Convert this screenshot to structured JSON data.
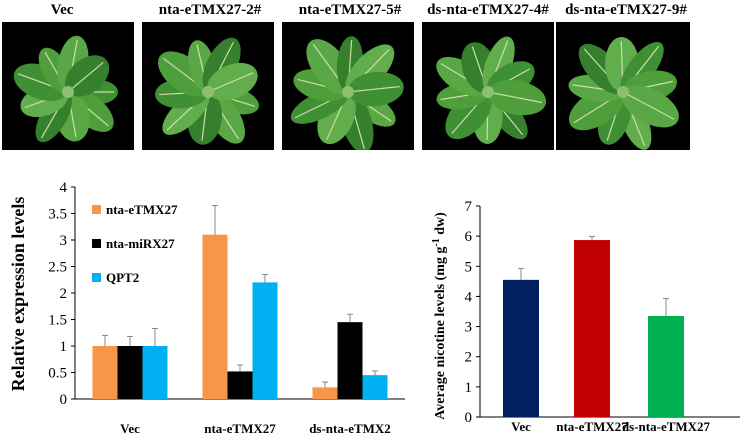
{
  "photos": [
    {
      "label": "Vec"
    },
    {
      "label": "nta-eTMX27-2#"
    },
    {
      "label": "nta-eTMX27-5#"
    },
    {
      "label": "ds-nta-eTMX27-4#"
    },
    {
      "label": "ds-nta-eTMX27-9#"
    }
  ],
  "chart_data": [
    {
      "type": "bar",
      "ylabel": "Relative expression levels",
      "ylim": [
        0,
        4
      ],
      "yticks": [
        "0",
        "0.5",
        "1",
        "1.5",
        "2",
        "2.5",
        "3",
        "3.5",
        "4"
      ],
      "categories": [
        "Vec",
        "nta-eTMX27",
        "ds-nta-eTMX2"
      ],
      "legend_placement": "top-left",
      "series": [
        {
          "name": "nta-eTMX27",
          "color": "#F79646",
          "values": [
            1.0,
            3.1,
            0.22
          ],
          "errors": [
            0.2,
            0.55,
            0.1
          ]
        },
        {
          "name": "nta-miRX27",
          "color": "#000000",
          "values": [
            1.0,
            0.52,
            1.45
          ],
          "errors": [
            0.18,
            0.12,
            0.15
          ]
        },
        {
          "name": "QPT2",
          "color": "#00B0F0",
          "values": [
            1.0,
            2.2,
            0.45
          ],
          "errors": [
            0.33,
            0.15,
            0.08
          ]
        }
      ]
    },
    {
      "type": "bar",
      "ylabel": "Average nicotine levels (mg  g",
      "ylabel_sup": "-1",
      "ylabel_tail": " dw)",
      "ylim": [
        0,
        7
      ],
      "yticks": [
        "0",
        "1",
        "2",
        "3",
        "4",
        "5",
        "6",
        "7"
      ],
      "categories": [
        "Vec",
        "nta-eTMX27",
        "ds-nta-eTMX27"
      ],
      "values": [
        4.55,
        5.87,
        3.35
      ],
      "errors": [
        0.38,
        0.12,
        0.58
      ],
      "colors": [
        "#002060",
        "#C00000",
        "#00B050"
      ]
    }
  ]
}
